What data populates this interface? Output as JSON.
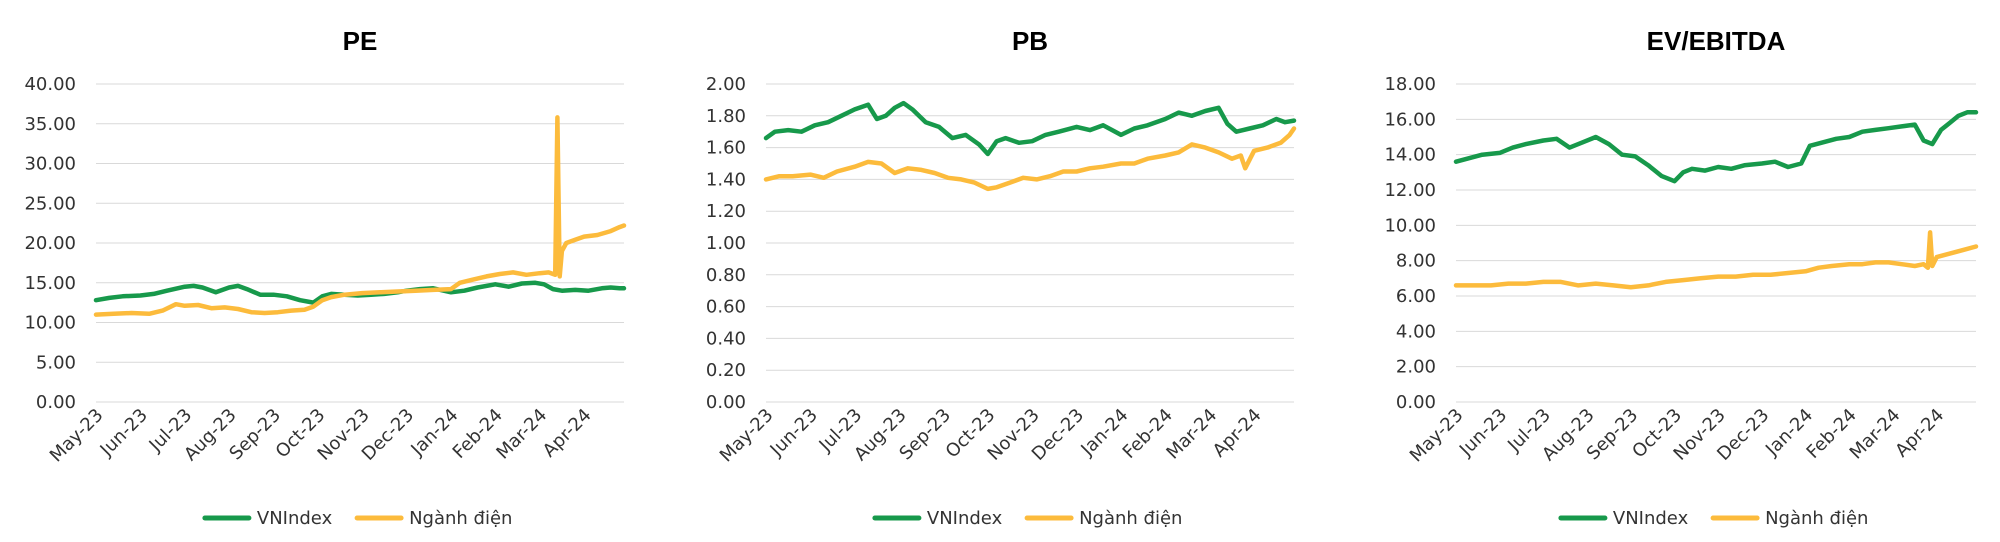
{
  "chart_data": [
    {
      "type": "line",
      "title": "PE",
      "xlabel": "",
      "ylabel": "",
      "ylim": [
        0,
        40
      ],
      "yticks": [
        "0.00",
        "5.00",
        "10.00",
        "15.00",
        "20.00",
        "25.00",
        "30.00",
        "35.00",
        "40.00"
      ],
      "categories": [
        "May-23",
        "Jun-23",
        "Jul-23",
        "Aug-23",
        "Sep-23",
        "Oct-23",
        "Nov-23",
        "Dec-23",
        "Jan-24",
        "Feb-24",
        "Mar-24",
        "Apr-24"
      ],
      "legend_position": "bottom",
      "series": [
        {
          "name": "VNIndex",
          "color": "#17994b",
          "x": [
            0,
            0.3,
            0.6,
            1.0,
            1.3,
            1.6,
            2.0,
            2.2,
            2.4,
            2.7,
            3.0,
            3.2,
            3.4,
            3.7,
            4.0,
            4.3,
            4.6,
            4.9,
            5.1,
            5.3,
            5.6,
            5.9,
            6.2,
            6.5,
            6.8,
            7.0,
            7.3,
            7.6,
            8.0,
            8.3,
            8.6,
            9.0,
            9.3,
            9.6,
            9.9,
            10.1,
            10.3,
            10.5,
            10.8,
            11.1,
            11.4,
            11.6,
            11.8,
            11.9
          ],
          "y": [
            12.8,
            13.1,
            13.3,
            13.4,
            13.6,
            14.0,
            14.5,
            14.6,
            14.4,
            13.8,
            14.4,
            14.6,
            14.2,
            13.5,
            13.5,
            13.3,
            12.8,
            12.5,
            13.3,
            13.6,
            13.5,
            13.4,
            13.5,
            13.6,
            13.8,
            14.0,
            14.2,
            14.3,
            13.8,
            14.0,
            14.4,
            14.8,
            14.5,
            14.9,
            15.0,
            14.8,
            14.2,
            14.0,
            14.1,
            14.0,
            14.3,
            14.4,
            14.3,
            14.3
          ]
        },
        {
          "name": "Ngành điện",
          "color": "#fcbb3c",
          "x": [
            0,
            0.4,
            0.8,
            1.2,
            1.5,
            1.8,
            2.0,
            2.3,
            2.6,
            2.9,
            3.2,
            3.5,
            3.8,
            4.1,
            4.4,
            4.7,
            4.9,
            5.1,
            5.3,
            5.6,
            6.0,
            6.4,
            6.8,
            7.2,
            7.6,
            8.0,
            8.2,
            8.5,
            8.8,
            9.1,
            9.4,
            9.7,
            10.0,
            10.2,
            10.35,
            10.4,
            10.45,
            10.5,
            10.6,
            10.8,
            11.0,
            11.3,
            11.6,
            11.8,
            11.9
          ],
          "y": [
            11.0,
            11.1,
            11.2,
            11.1,
            11.5,
            12.3,
            12.1,
            12.2,
            11.8,
            11.9,
            11.7,
            11.3,
            11.2,
            11.3,
            11.5,
            11.6,
            12.0,
            12.8,
            13.2,
            13.5,
            13.7,
            13.8,
            13.9,
            14.0,
            14.1,
            14.2,
            15.0,
            15.4,
            15.8,
            16.1,
            16.3,
            16.0,
            16.2,
            16.3,
            16.0,
            35.8,
            15.8,
            19.0,
            20.0,
            20.4,
            20.8,
            21.0,
            21.5,
            22.0,
            22.2
          ]
        }
      ]
    },
    {
      "type": "line",
      "title": "PB",
      "xlabel": "",
      "ylabel": "",
      "ylim": [
        0,
        2
      ],
      "yticks": [
        "0.00",
        "0.20",
        "0.40",
        "0.60",
        "0.80",
        "1.00",
        "1.20",
        "1.40",
        "1.60",
        "1.80",
        "2.00"
      ],
      "categories": [
        "May-23",
        "Jun-23",
        "Jul-23",
        "Aug-23",
        "Sep-23",
        "Oct-23",
        "Nov-23",
        "Dec-23",
        "Jan-24",
        "Feb-24",
        "Mar-24",
        "Apr-24"
      ],
      "legend_position": "bottom",
      "series": [
        {
          "name": "VNIndex",
          "color": "#17994b",
          "x": [
            0,
            0.2,
            0.5,
            0.8,
            1.1,
            1.4,
            1.7,
            2.0,
            2.3,
            2.5,
            2.7,
            2.9,
            3.1,
            3.3,
            3.6,
            3.9,
            4.2,
            4.5,
            4.8,
            5.0,
            5.2,
            5.4,
            5.7,
            6.0,
            6.3,
            6.6,
            7.0,
            7.3,
            7.6,
            8.0,
            8.3,
            8.6,
            9.0,
            9.3,
            9.6,
            9.9,
            10.2,
            10.4,
            10.6,
            10.9,
            11.2,
            11.5,
            11.7,
            11.9
          ],
          "y": [
            1.66,
            1.7,
            1.71,
            1.7,
            1.74,
            1.76,
            1.8,
            1.84,
            1.87,
            1.78,
            1.8,
            1.85,
            1.88,
            1.84,
            1.76,
            1.73,
            1.66,
            1.68,
            1.62,
            1.56,
            1.64,
            1.66,
            1.63,
            1.64,
            1.68,
            1.7,
            1.73,
            1.71,
            1.74,
            1.68,
            1.72,
            1.74,
            1.78,
            1.82,
            1.8,
            1.83,
            1.85,
            1.75,
            1.7,
            1.72,
            1.74,
            1.78,
            1.76,
            1.77
          ]
        },
        {
          "name": "Ngành điện",
          "color": "#fcbb3c",
          "x": [
            0,
            0.3,
            0.6,
            1.0,
            1.3,
            1.6,
            2.0,
            2.3,
            2.6,
            2.9,
            3.2,
            3.5,
            3.8,
            4.1,
            4.4,
            4.7,
            5.0,
            5.2,
            5.5,
            5.8,
            6.1,
            6.4,
            6.7,
            7.0,
            7.3,
            7.6,
            8.0,
            8.3,
            8.6,
            9.0,
            9.3,
            9.6,
            9.9,
            10.2,
            10.5,
            10.7,
            10.8,
            11.0,
            11.3,
            11.6,
            11.8,
            11.9
          ],
          "y": [
            1.4,
            1.42,
            1.42,
            1.43,
            1.41,
            1.45,
            1.48,
            1.51,
            1.5,
            1.44,
            1.47,
            1.46,
            1.44,
            1.41,
            1.4,
            1.38,
            1.34,
            1.35,
            1.38,
            1.41,
            1.4,
            1.42,
            1.45,
            1.45,
            1.47,
            1.48,
            1.5,
            1.5,
            1.53,
            1.55,
            1.57,
            1.62,
            1.6,
            1.57,
            1.53,
            1.55,
            1.47,
            1.58,
            1.6,
            1.63,
            1.68,
            1.72
          ]
        }
      ]
    },
    {
      "type": "line",
      "title": "EV/EBITDA",
      "xlabel": "",
      "ylabel": "",
      "ylim": [
        0,
        18
      ],
      "yticks": [
        "0.00",
        "2.00",
        "4.00",
        "6.00",
        "8.00",
        "10.00",
        "12.00",
        "14.00",
        "16.00",
        "18.00"
      ],
      "categories": [
        "May-23",
        "Jun-23",
        "Jul-23",
        "Aug-23",
        "Sep-23",
        "Oct-23",
        "Nov-23",
        "Dec-23",
        "Jan-24",
        "Feb-24",
        "Mar-24",
        "Apr-24"
      ],
      "legend_position": "bottom",
      "series": [
        {
          "name": "VNIndex",
          "color": "#17994b",
          "x": [
            0,
            0.3,
            0.6,
            1.0,
            1.3,
            1.6,
            2.0,
            2.3,
            2.6,
            2.9,
            3.2,
            3.5,
            3.8,
            4.1,
            4.4,
            4.7,
            5.0,
            5.2,
            5.4,
            5.7,
            6.0,
            6.3,
            6.6,
            7.0,
            7.3,
            7.6,
            7.9,
            8.1,
            8.4,
            8.7,
            9.0,
            9.3,
            9.6,
            9.9,
            10.2,
            10.5,
            10.7,
            10.9,
            11.1,
            11.3,
            11.5,
            11.7,
            11.9
          ],
          "y": [
            13.6,
            13.8,
            14.0,
            14.1,
            14.4,
            14.6,
            14.8,
            14.9,
            14.4,
            14.7,
            15.0,
            14.6,
            14.0,
            13.9,
            13.4,
            12.8,
            12.5,
            13.0,
            13.2,
            13.1,
            13.3,
            13.2,
            13.4,
            13.5,
            13.6,
            13.3,
            13.5,
            14.5,
            14.7,
            14.9,
            15.0,
            15.3,
            15.4,
            15.5,
            15.6,
            15.7,
            14.8,
            14.6,
            15.4,
            15.8,
            16.2,
            16.4,
            16.4
          ]
        },
        {
          "name": "Ngành điện",
          "color": "#fcbb3c",
          "x": [
            0,
            0.4,
            0.8,
            1.2,
            1.6,
            2.0,
            2.4,
            2.8,
            3.2,
            3.6,
            4.0,
            4.4,
            4.8,
            5.2,
            5.6,
            6.0,
            6.4,
            6.8,
            7.2,
            7.6,
            8.0,
            8.3,
            8.6,
            9.0,
            9.3,
            9.6,
            9.9,
            10.2,
            10.5,
            10.7,
            10.8,
            10.85,
            10.9,
            11.0,
            11.3,
            11.6,
            11.9
          ],
          "y": [
            6.6,
            6.6,
            6.6,
            6.7,
            6.7,
            6.8,
            6.8,
            6.6,
            6.7,
            6.6,
            6.5,
            6.6,
            6.8,
            6.9,
            7.0,
            7.1,
            7.1,
            7.2,
            7.2,
            7.3,
            7.4,
            7.6,
            7.7,
            7.8,
            7.8,
            7.9,
            7.9,
            7.8,
            7.7,
            7.8,
            7.6,
            9.6,
            7.7,
            8.2,
            8.4,
            8.6,
            8.8
          ]
        }
      ]
    }
  ]
}
